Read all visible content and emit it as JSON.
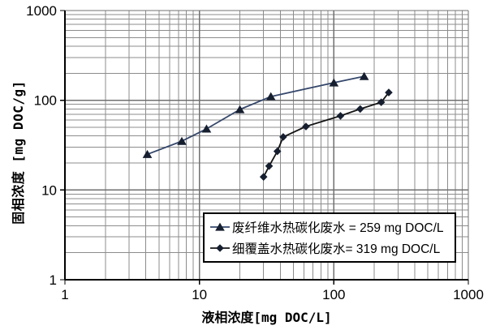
{
  "chart_data": {
    "type": "scatter",
    "subtype": "line-with-markers",
    "scale": "log-log",
    "title": "",
    "xlabel": "液相浓度[mg DOC/L]",
    "ylabel": "固相浓度 [mg DOC/g]",
    "xlim": [
      1,
      1000
    ],
    "ylim": [
      1,
      1000
    ],
    "x_ticks": [
      1,
      10,
      100,
      1000
    ],
    "y_ticks": [
      1,
      10,
      100,
      1000
    ],
    "grid": {
      "major": true,
      "minor": true,
      "major_color": "#707070",
      "minor_color": "#8c8c8c"
    },
    "axis_color": "#000000",
    "legend_position": "inside-bottom-right",
    "series": [
      {
        "name": "废纤维水热碳化废水 = 259 mg DOC/L",
        "marker": "triangle",
        "line_color": "#35476b",
        "marker_color": "#161f2f",
        "points": [
          [
            4.1,
            25
          ],
          [
            7.4,
            35
          ],
          [
            11.3,
            48
          ],
          [
            20,
            79
          ],
          [
            34,
            110
          ],
          [
            100,
            157
          ],
          [
            168,
            185
          ]
        ]
      },
      {
        "name": "细覆盖水热碳化废水= 319 mg DOC/L",
        "marker": "diamond",
        "line_color": "#141414",
        "marker_color": "#161f2f",
        "points": [
          [
            30,
            14
          ],
          [
            33,
            18.5
          ],
          [
            38,
            27
          ],
          [
            42,
            39
          ],
          [
            62,
            51
          ],
          [
            112,
            67
          ],
          [
            157,
            80
          ],
          [
            225,
            95
          ],
          [
            256,
            122
          ]
        ]
      }
    ]
  }
}
